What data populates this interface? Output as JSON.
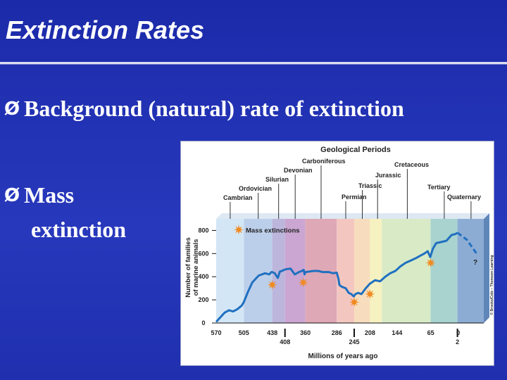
{
  "slide": {
    "title": "Extinction Rates",
    "bullets": [
      {
        "text": "Background (natural) rate of extinction"
      },
      {
        "line1": "Mass",
        "line2": "extinction"
      }
    ],
    "bullet_glyph": "Ø"
  },
  "chart_data": {
    "type": "line",
    "title": "Geological Periods",
    "ylabel": "Number of families of marine animals",
    "ylabel_lines": [
      "Number of families",
      "of marine animals"
    ],
    "xlabel": "Millions of years ago",
    "legend": "Mass extinctions",
    "question_mark": "?",
    "credit": "© Brooks/Cole – Thomson Learning",
    "y_ticks": [
      "0",
      "200",
      "400",
      "600",
      "800"
    ],
    "y_tick_values": [
      0,
      200,
      400,
      600,
      800
    ],
    "x_ticks_top": [
      "570",
      "505",
      "438",
      "360",
      "286",
      "208",
      "144",
      "65",
      "0"
    ],
    "x_ticks_top_values": [
      570,
      505,
      438,
      360,
      286,
      208,
      144,
      65,
      0
    ],
    "x_ticks_bottom": [
      "408",
      "245",
      "2"
    ],
    "x_ticks_bottom_values": [
      408,
      245,
      2
    ],
    "periods": [
      {
        "name": "Cambrian",
        "start": 570,
        "end": 505,
        "color": "#d3e6f5"
      },
      {
        "name": "Ordovician",
        "start": 505,
        "end": 438,
        "color": "#bccfea"
      },
      {
        "name": "Silurian",
        "start": 438,
        "end": 408,
        "color": "#bcb5dc"
      },
      {
        "name": "Devonian",
        "start": 408,
        "end": 360,
        "color": "#cba6d2"
      },
      {
        "name": "Carboniferous",
        "start": 360,
        "end": 286,
        "color": "#dfa8b6"
      },
      {
        "name": "Permian",
        "start": 286,
        "end": 245,
        "color": "#f3c7c0"
      },
      {
        "name": "Triassic",
        "start": 245,
        "end": 208,
        "color": "#f7ddbd"
      },
      {
        "name": "Jurassic",
        "start": 208,
        "end": 180,
        "color": "#f6f1c0"
      },
      {
        "name": "Cretaceous",
        "start": 180,
        "end": 65,
        "color": "#d8ebc6"
      },
      {
        "name": "Tertiary",
        "start": 65,
        "end": 2,
        "color": "#a8d3cf"
      },
      {
        "name": "Quaternary",
        "start": 2,
        "end": -60,
        "color": "#8cacd4"
      }
    ],
    "series": [
      {
        "name": "Number of families",
        "x": [
          570,
          565,
          550,
          540,
          530,
          520,
          510,
          505,
          495,
          485,
          470,
          455,
          445,
          440,
          438,
          432,
          425,
          420,
          415,
          410,
          405,
          395,
          385,
          375,
          368,
          364,
          362,
          360,
          350,
          340,
          330,
          320,
          305,
          295,
          286,
          282,
          280,
          277,
          272,
          265,
          258,
          252,
          246,
          242,
          236,
          228,
          218,
          208,
          196,
          184,
          172,
          160,
          148,
          136,
          124,
          112,
          100,
          90,
          80,
          72,
          66,
          60,
          52,
          40,
          28,
          16,
          6,
          2
        ],
        "y": [
          10,
          30,
          90,
          110,
          100,
          120,
          150,
          180,
          270,
          350,
          410,
          430,
          420,
          440,
          440,
          430,
          390,
          445,
          450,
          460,
          465,
          470,
          420,
          440,
          450,
          460,
          420,
          440,
          445,
          450,
          450,
          440,
          440,
          430,
          435,
          380,
          330,
          320,
          310,
          300,
          260,
          250,
          230,
          250,
          260,
          250,
          300,
          340,
          370,
          360,
          400,
          430,
          450,
          490,
          520,
          540,
          560,
          580,
          600,
          620,
          570,
          640,
          690,
          700,
          710,
          760,
          770,
          780
        ]
      },
      {
        "name": "Projection",
        "dashed": true,
        "x": [
          2,
          -20,
          -45
        ],
        "y": [
          780,
          720,
          590
        ]
      }
    ],
    "mass_extinctions": [
      {
        "x": 438,
        "y": 330
      },
      {
        "x": 365,
        "y": 350
      },
      {
        "x": 245,
        "y": 180
      },
      {
        "x": 208,
        "y": 250
      },
      {
        "x": 65,
        "y": 520
      }
    ],
    "colors": {
      "line": "#2070c0",
      "star": "#f08a20",
      "tick": "#111111"
    }
  }
}
